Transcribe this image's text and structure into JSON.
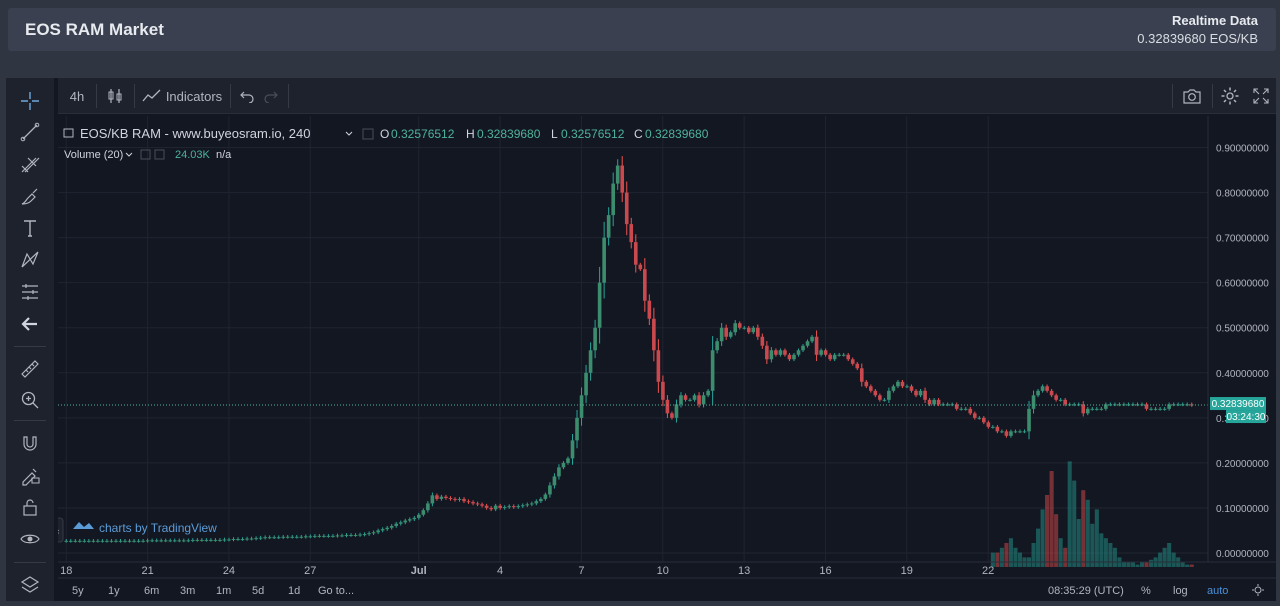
{
  "header": {
    "title": "EOS RAM Market",
    "realtime_label": "Realtime Data",
    "realtime_value": "0.32839680 EOS/KB"
  },
  "toolbar": {
    "interval": "4h",
    "indicators_label": "Indicators"
  },
  "legend": {
    "symbol": "EOS/KB RAM - www.buyeosram.io, 240",
    "o_label": "O",
    "o_value": "0.32576512",
    "h_label": "H",
    "h_value": "0.32839680",
    "l_label": "L",
    "l_value": "0.32576512",
    "c_label": "C",
    "c_value": "0.32839680",
    "volume_label": "Volume (20)",
    "volume_value": "24.03K",
    "volume_ma": "n/a"
  },
  "price_tag": "0.32839680",
  "countdown_tag": "03:24:30",
  "watermark": "charts by TradingView",
  "bottom": {
    "ranges": [
      "5y",
      "1y",
      "6m",
      "3m",
      "1m",
      "5d",
      "1d"
    ],
    "goto": "Go to...",
    "clock": "08:35:29 (UTC)",
    "pct": "%",
    "log": "log",
    "auto": "auto"
  },
  "colors": {
    "up": "#26a69a",
    "down": "#ef5350",
    "up_body": "#3c8d6e",
    "down_body": "#c9494f",
    "price_line": "#4fb39b",
    "background": "#131722"
  },
  "chart_data": {
    "type": "candlestick",
    "title": "EOS/KB RAM - www.buyeosram.io, 240",
    "ylim": [
      -0.02,
      0.97
    ],
    "y_ticks": [
      "0.90000000",
      "0.80000000",
      "0.70000000",
      "0.60000000",
      "0.50000000",
      "0.40000000",
      "0.30000000",
      "0.20000000",
      "0.10000000",
      "0.00000000"
    ],
    "y_tick_values": [
      0.9,
      0.8,
      0.7,
      0.6,
      0.5,
      0.4,
      0.3,
      0.2,
      0.1,
      0.0
    ],
    "x_ticks": [
      "18",
      "21",
      "24",
      "27",
      "Jul",
      "4",
      "7",
      "10",
      "13",
      "16",
      "19",
      "22"
    ],
    "last_price": 0.3284,
    "series": [
      {
        "name": "EOS/KB RAM",
        "x_start_day": -13,
        "candle_days": 0.1667,
        "close": [
          0.027,
          0.027,
          0.027,
          0.027,
          0.027,
          0.027,
          0.027,
          0.027,
          0.027,
          0.027,
          0.027,
          0.027,
          0.027,
          0.027,
          0.027,
          0.027,
          0.027,
          0.027,
          0.028,
          0.028,
          0.028,
          0.028,
          0.028,
          0.028,
          0.028,
          0.028,
          0.028,
          0.028,
          0.029,
          0.029,
          0.029,
          0.029,
          0.029,
          0.029,
          0.029,
          0.03,
          0.03,
          0.031,
          0.031,
          0.031,
          0.032,
          0.032,
          0.033,
          0.034,
          0.035,
          0.035,
          0.035,
          0.035,
          0.036,
          0.036,
          0.036,
          0.036,
          0.036,
          0.037,
          0.037,
          0.038,
          0.038,
          0.038,
          0.038,
          0.038,
          0.039,
          0.039,
          0.04,
          0.04,
          0.04,
          0.041,
          0.042,
          0.044,
          0.046,
          0.05,
          0.053,
          0.056,
          0.06,
          0.065,
          0.068,
          0.072,
          0.075,
          0.078,
          0.085,
          0.095,
          0.11,
          0.128,
          0.12,
          0.125,
          0.122,
          0.12,
          0.118,
          0.12,
          0.115,
          0.113,
          0.11,
          0.108,
          0.105,
          0.1,
          0.097,
          0.105,
          0.1,
          0.102,
          0.104,
          0.102,
          0.104,
          0.106,
          0.108,
          0.11,
          0.115,
          0.12,
          0.13,
          0.15,
          0.17,
          0.19,
          0.2,
          0.21,
          0.25,
          0.3,
          0.35,
          0.4,
          0.45,
          0.5,
          0.6,
          0.7,
          0.75,
          0.82,
          0.86,
          0.8,
          0.73,
          0.69,
          0.64,
          0.63,
          0.56,
          0.52,
          0.45,
          0.38,
          0.34,
          0.31,
          0.3,
          0.33,
          0.35,
          0.34,
          0.34,
          0.35,
          0.33,
          0.35,
          0.36,
          0.45,
          0.47,
          0.5,
          0.48,
          0.49,
          0.51,
          0.5,
          0.5,
          0.49,
          0.5,
          0.48,
          0.46,
          0.43,
          0.45,
          0.44,
          0.45,
          0.44,
          0.43,
          0.44,
          0.45,
          0.46,
          0.47,
          0.48,
          0.44,
          0.45,
          0.44,
          0.43,
          0.44,
          0.44,
          0.44,
          0.43,
          0.42,
          0.41,
          0.38,
          0.37,
          0.36,
          0.35,
          0.34,
          0.34,
          0.36,
          0.37,
          0.38,
          0.37,
          0.37,
          0.36,
          0.35,
          0.36,
          0.34,
          0.33,
          0.34,
          0.33,
          0.33,
          0.33,
          0.33,
          0.32,
          0.32,
          0.32,
          0.31,
          0.3,
          0.3,
          0.29,
          0.28,
          0.28,
          0.27,
          0.27,
          0.26,
          0.27,
          0.27,
          0.27,
          0.27,
          0.32,
          0.35,
          0.36,
          0.37,
          0.36,
          0.35,
          0.34,
          0.34,
          0.33,
          0.33,
          0.33,
          0.33,
          0.31,
          0.32,
          0.32,
          0.32,
          0.32,
          0.33,
          0.33,
          0.33,
          0.33,
          0.33,
          0.33,
          0.33,
          0.33,
          0.33,
          0.32,
          0.32,
          0.32,
          0.32,
          0.32,
          0.33,
          0.33,
          0.33,
          0.33,
          0.33,
          0.3284
        ]
      },
      {
        "name": "Volume (20)",
        "start_index": 205,
        "values": [
          0.03,
          0.03,
          0.04,
          0.05,
          0.06,
          0.04,
          0.03,
          0.02,
          0.02,
          0.05,
          0.08,
          0.12,
          0.15,
          0.2,
          0.11,
          0.06,
          0.04,
          0.22,
          0.18,
          0.1,
          0.16,
          0.14,
          0.09,
          0.12,
          0.07,
          0.06,
          0.05,
          0.04,
          0.02,
          0.01,
          0.01,
          0.01,
          0.005,
          0.01,
          0.01,
          0.015,
          0.02,
          0.03,
          0.04,
          0.05,
          0.03,
          0.02,
          0.01,
          0.005,
          0.005,
          0.005,
          0.005,
          0.005,
          0.005,
          0.005,
          0.005,
          0.005,
          0.005,
          0.005,
          0.005,
          0.005,
          0.005,
          0.005,
          0.005,
          0.005,
          0.005,
          0.005,
          0.005,
          0.005,
          0.005,
          0.005,
          0.005,
          0.005,
          0.005,
          0.005,
          0.005,
          0.005,
          0.005,
          0.005,
          0.005,
          0.005,
          0.005,
          0.005,
          0.005,
          0.005,
          0.005,
          0.005,
          0.005,
          0.005,
          0.005,
          0.005,
          0.005,
          0.005,
          0.005,
          0.005,
          0.005,
          0.005,
          0.005,
          0.01,
          0.02,
          0.1,
          0.15,
          0.18,
          0.14,
          0.09,
          0.06,
          0.05,
          0.04,
          0.03,
          0.02,
          0.01,
          0.01,
          0.005,
          0.005,
          0.005,
          0.005,
          0.005,
          0.005,
          0.005,
          0.005,
          0.005,
          0.005,
          0.005,
          0.005,
          0.005,
          0.005
        ]
      }
    ]
  }
}
